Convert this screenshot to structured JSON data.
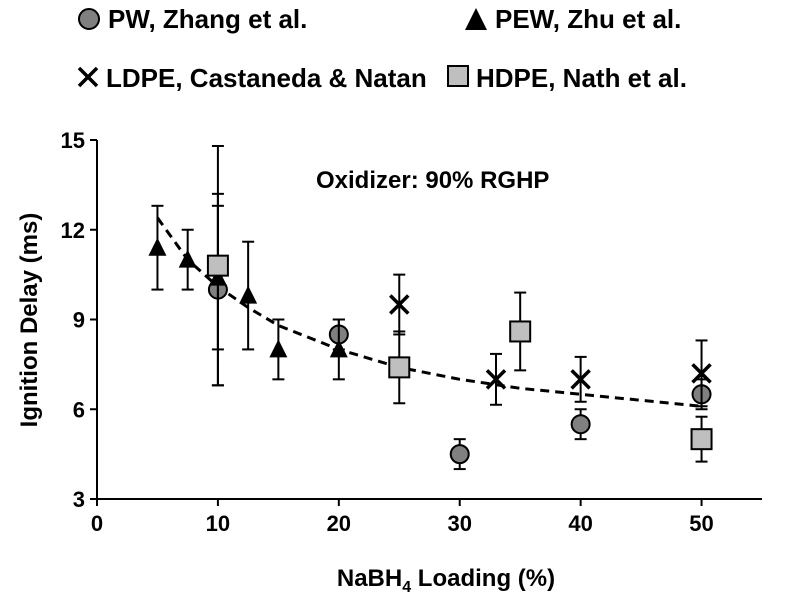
{
  "chart_data": {
    "type": "scatter",
    "title": "",
    "annotation": "Oxidizer: 90% RGHP",
    "xlabel": {
      "main": "NaBH",
      "sub": "4",
      "rest": " Loading (%)"
    },
    "ylabel": "Ignition Delay (ms)",
    "xlim": [
      0,
      55
    ],
    "ylim": [
      3,
      15
    ],
    "x_ticks": [
      0,
      10,
      20,
      30,
      40,
      50
    ],
    "y_ticks": [
      3,
      6,
      9,
      12,
      15
    ],
    "grid": false,
    "legend_position": "top",
    "series": [
      {
        "name": "PW, Zhang et al.",
        "marker": "circle",
        "color": "#808080",
        "points": [
          {
            "x": 10,
            "y": 10.0,
            "err": 3.2
          },
          {
            "x": 20,
            "y": 8.5,
            "err": 0.5
          },
          {
            "x": 30,
            "y": 4.5,
            "err": 0.5
          },
          {
            "x": 40,
            "y": 5.5,
            "err": 0.5
          },
          {
            "x": 50,
            "y": 6.5,
            "err": 0.5
          }
        ]
      },
      {
        "name": "PEW, Zhu et al.",
        "marker": "triangle",
        "color": "#000000",
        "points": [
          {
            "x": 5,
            "y": 11.4,
            "err": 1.4
          },
          {
            "x": 7.5,
            "y": 11.0,
            "err": 1.0
          },
          {
            "x": 10,
            "y": 10.4,
            "err": 2.4
          },
          {
            "x": 12.5,
            "y": 9.8,
            "err": 1.8
          },
          {
            "x": 15,
            "y": 8.0,
            "err": 1.0
          },
          {
            "x": 20,
            "y": 8.0,
            "err": 1.0
          }
        ]
      },
      {
        "name": "LDPE, Castaneda & Natan",
        "marker": "x",
        "color": "#000000",
        "points": [
          {
            "x": 25,
            "y": 9.5,
            "err": 1.0
          },
          {
            "x": 33,
            "y": 7.0,
            "err": 0.85
          },
          {
            "x": 40,
            "y": 7.0,
            "err": 0.75
          },
          {
            "x": 50,
            "y": 7.2,
            "err": 1.1
          }
        ]
      },
      {
        "name": "HDPE, Nath et al.",
        "marker": "square",
        "color": "#bfbfbf",
        "points": [
          {
            "x": 10,
            "y": 10.8,
            "err": 4.0
          },
          {
            "x": 25,
            "y": 7.4,
            "err": 1.2
          },
          {
            "x": 35,
            "y": 8.6,
            "err": 1.3
          },
          {
            "x": 50,
            "y": 5.0,
            "err": 0.75
          }
        ]
      }
    ],
    "trendline": {
      "style": "dashed",
      "color": "#000000",
      "x": [
        5,
        7.5,
        10,
        12.5,
        15,
        20,
        25,
        30,
        35,
        40,
        45,
        50
      ],
      "y": [
        12.4,
        11.0,
        10.1,
        9.4,
        8.8,
        8.0,
        7.4,
        7.0,
        6.7,
        6.5,
        6.3,
        6.1
      ]
    }
  }
}
